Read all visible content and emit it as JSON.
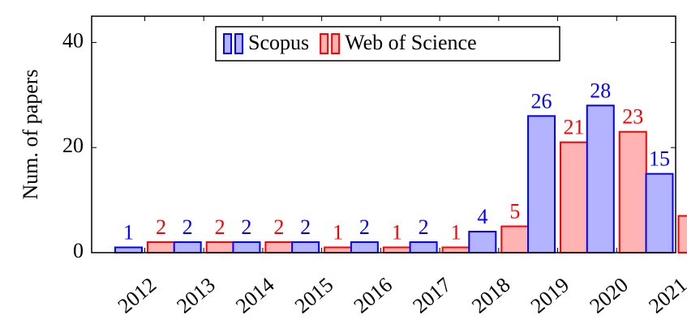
{
  "chart_data": {
    "type": "bar",
    "ylabel": "Num. of papers",
    "categories": [
      "2012",
      "2013",
      "2014",
      "2015",
      "2016",
      "2017",
      "2018",
      "2019",
      "2020",
      "2021"
    ],
    "series": [
      {
        "name": "Scopus",
        "color": "#0000ff",
        "fill": "#b3b3ff",
        "values": [
          1,
          2,
          2,
          2,
          2,
          2,
          4,
          26,
          28,
          15
        ]
      },
      {
        "name": "Web of Science",
        "color": "#ff0000",
        "fill": "#ffb3b3",
        "values": [
          2,
          2,
          2,
          1,
          1,
          1,
          5,
          21,
          23,
          7
        ]
      }
    ],
    "ylim": [
      0,
      45
    ],
    "yticks": [
      0,
      20,
      40
    ],
    "legend": "top"
  }
}
